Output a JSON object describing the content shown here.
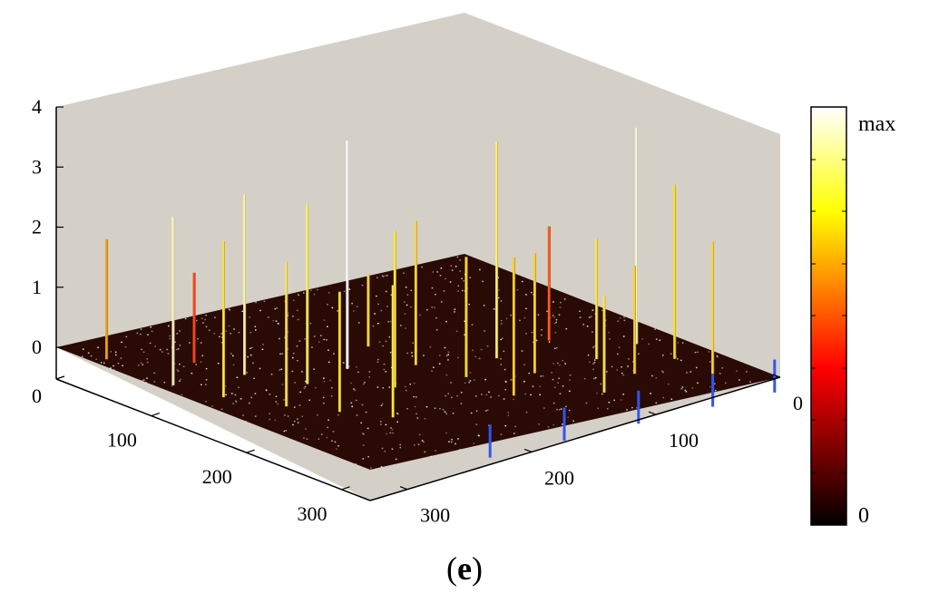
{
  "chart_data": {
    "type": "3d-stem",
    "title": "",
    "panel_label": "e",
    "z_ticks": [
      "0",
      "1",
      "2",
      "3",
      "4"
    ],
    "zlim": [
      0,
      4
    ],
    "x_ticks": [
      "0",
      "100",
      "200",
      "300"
    ],
    "y_ticks": [
      "0",
      "100",
      "200",
      "300"
    ],
    "xlim": [
      0,
      330
    ],
    "ylim": [
      0,
      330
    ],
    "colorbar": {
      "colormap": "hot",
      "top_label": "max",
      "bottom_label": "0"
    },
    "colors": {
      "pane": "#d4d0c8",
      "floor": "#2a0a05",
      "noise": "#ffffff",
      "negative_spike": "#3355ee"
    },
    "spikes": [
      {
        "x": 40,
        "y": 10,
        "z": 2.0,
        "color": "#f5a21a"
      },
      {
        "x": 110,
        "y": 10,
        "z": 2.8,
        "color": "#fff7c0"
      },
      {
        "x": 80,
        "y": 50,
        "z": 1.5,
        "color": "#ff4a1a"
      },
      {
        "x": 150,
        "y": 20,
        "z": 2.6,
        "color": "#ffe23a"
      },
      {
        "x": 120,
        "y": 60,
        "z": 3.0,
        "color": "#fff3a8"
      },
      {
        "x": 190,
        "y": 40,
        "z": 2.4,
        "color": "#ffe65c"
      },
      {
        "x": 160,
        "y": 80,
        "z": 3.0,
        "color": "#ffef6a"
      },
      {
        "x": 220,
        "y": 60,
        "z": 2.0,
        "color": "#ffe028"
      },
      {
        "x": 250,
        "y": 80,
        "z": 2.2,
        "color": "#ffe844"
      },
      {
        "x": 150,
        "y": 120,
        "z": 3.8,
        "color": "#ffffff"
      },
      {
        "x": 200,
        "y": 120,
        "z": 2.6,
        "color": "#ffeb3b"
      },
      {
        "x": 170,
        "y": 160,
        "z": 2.4,
        "color": "#ffd53a"
      },
      {
        "x": 210,
        "y": 170,
        "z": 2.0,
        "color": "#ffe23a"
      },
      {
        "x": 190,
        "y": 210,
        "z": 3.6,
        "color": "#ffef6a"
      },
      {
        "x": 180,
        "y": 260,
        "z": 1.9,
        "color": "#ff5a20"
      },
      {
        "x": 230,
        "y": 210,
        "z": 2.0,
        "color": "#ffd22a"
      },
      {
        "x": 230,
        "y": 260,
        "z": 2.0,
        "color": "#ffe844"
      },
      {
        "x": 220,
        "y": 300,
        "z": 3.6,
        "color": "#fffad8"
      },
      {
        "x": 270,
        "y": 260,
        "z": 1.8,
        "color": "#ffcf2a"
      },
      {
        "x": 260,
        "y": 300,
        "z": 2.9,
        "color": "#ffe028"
      },
      {
        "x": 300,
        "y": 300,
        "z": 2.2,
        "color": "#ffd53a"
      },
      {
        "x": 290,
        "y": 220,
        "z": 1.6,
        "color": "#ffe844"
      },
      {
        "x": 260,
        "y": 170,
        "z": 2.3,
        "color": "#ffcf2a"
      },
      {
        "x": 120,
        "y": 160,
        "z": 1.2,
        "color": "#ffe23a"
      }
    ],
    "negative_spikes": [
      {
        "x": 300,
        "y": 120,
        "z": -0.55
      },
      {
        "x": 300,
        "y": 180,
        "z": -0.55
      },
      {
        "x": 300,
        "y": 240,
        "z": -0.55
      },
      {
        "x": 300,
        "y": 300,
        "z": -0.55
      },
      {
        "x": 300,
        "y": 350,
        "z": -0.55
      }
    ]
  }
}
